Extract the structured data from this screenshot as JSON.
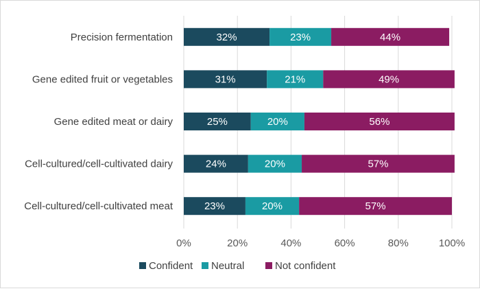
{
  "chart_data": {
    "type": "bar",
    "orientation": "horizontal",
    "stacked": true,
    "categories": [
      "Precision fermentation",
      "Gene edited fruit or vegetables",
      "Gene edited meat or dairy",
      "Cell-cultured/cell-cultivated dairy",
      "Cell-cultured/cell-cultivated meat"
    ],
    "series": [
      {
        "name": "Confident",
        "color": "#1b4a5e",
        "values": [
          32,
          31,
          25,
          24,
          23
        ],
        "labels": [
          "32%",
          "31%",
          "25%",
          "24%",
          "23%"
        ]
      },
      {
        "name": "Neutral",
        "color": "#1a9ba3",
        "values": [
          23,
          21,
          20,
          20,
          20
        ],
        "labels": [
          "23%",
          "21%",
          "20%",
          "20%",
          "20%"
        ]
      },
      {
        "name": "Not confident",
        "color": "#8b1c62",
        "values": [
          44,
          49,
          56,
          57,
          57
        ],
        "labels": [
          "44%",
          "49%",
          "56%",
          "57%",
          "57%"
        ]
      }
    ],
    "xlim": [
      0,
      100
    ],
    "xticks": [
      0,
      20,
      40,
      60,
      80,
      100
    ],
    "xtick_labels": [
      "0%",
      "20%",
      "40%",
      "60%",
      "80%",
      "100%"
    ],
    "grid": "vertical",
    "legend_position": "bottom",
    "title": "",
    "xlabel": "",
    "ylabel": ""
  }
}
